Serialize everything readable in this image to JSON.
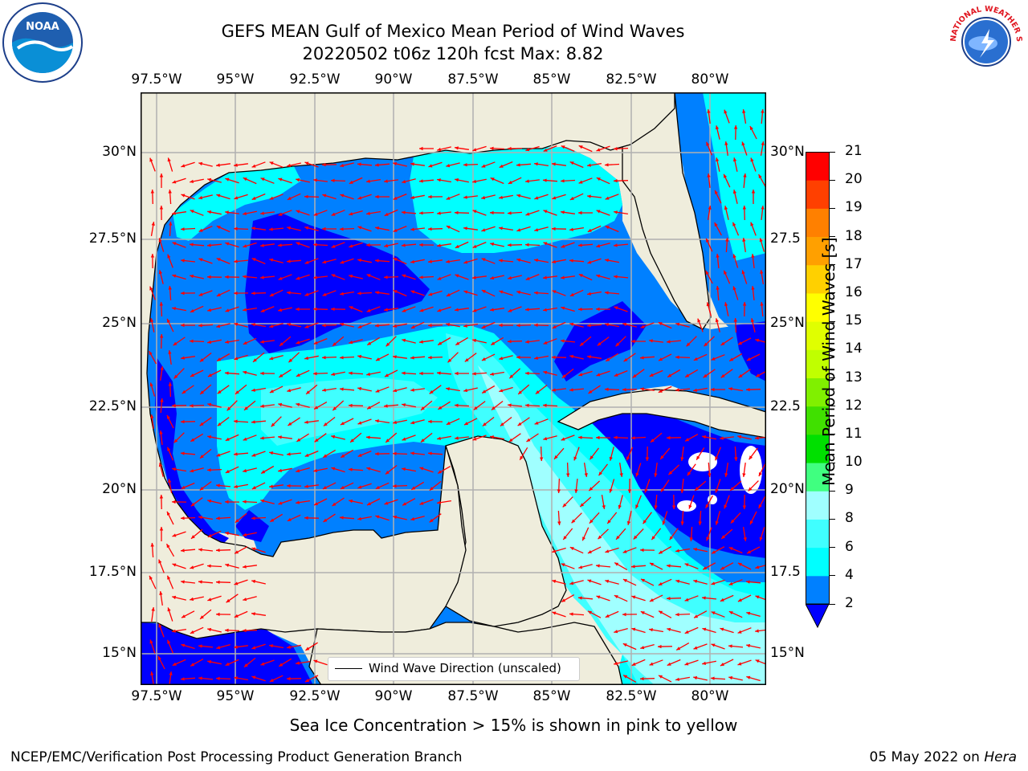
{
  "header": {
    "title_line1": "GEFS MEAN Gulf of Mexico Mean Period of Wind Waves",
    "title_line2": "20220502 t06z 120h fcst   Max: 8.82"
  },
  "logos": {
    "left": {
      "icon": "noaa-logo",
      "text": "NOAA"
    },
    "right": {
      "icon": "nws-logo",
      "text": "NATIONAL WEATHER SERVICE"
    }
  },
  "map": {
    "lon_labels": [
      "97.5°W",
      "95°W",
      "92.5°W",
      "90°W",
      "87.5°W",
      "85°W",
      "82.5°W",
      "80°W"
    ],
    "lat_labels_left": [
      "30°N",
      "27.5°N",
      "25°N",
      "22.5°N",
      "20°N",
      "17.5°N",
      "15°N"
    ],
    "lat_labels_right": [
      "30°N",
      "27.5",
      "25°N",
      "22.5",
      "20°N",
      "17.5",
      "15°N"
    ],
    "legend_label": "Wind Wave Direction (unscaled)",
    "colors": {
      "land": "#efeddc",
      "arrow": "#ff0000",
      "grid": "#b0b0b0",
      "coast": "#000000"
    }
  },
  "colorbar": {
    "label": "Mean Period of Wind Waves [s]",
    "ticks": [
      "2",
      "4",
      "6",
      "8",
      "9",
      "10",
      "11",
      "12",
      "13",
      "14",
      "15",
      "16",
      "17",
      "18",
      "19",
      "20",
      "21"
    ],
    "colors": [
      "#0000ff",
      "#0080ff",
      "#00ffff",
      "#40ffff",
      "#a0ffff",
      "#40ff80",
      "#00e000",
      "#40e000",
      "#80f000",
      "#c0ff00",
      "#e0ff00",
      "#ffff00",
      "#ffd000",
      "#ffa000",
      "#ff8000",
      "#ff4000",
      "#ff0000"
    ]
  },
  "notes": {
    "sea_ice": "Sea Ice Concentration > 15% is shown in pink to yellow"
  },
  "footer": {
    "left": "NCEP/EMC/Verification Post Processing Product Generation Branch",
    "date": "05 May 2022 on ",
    "machine": "Hera"
  }
}
